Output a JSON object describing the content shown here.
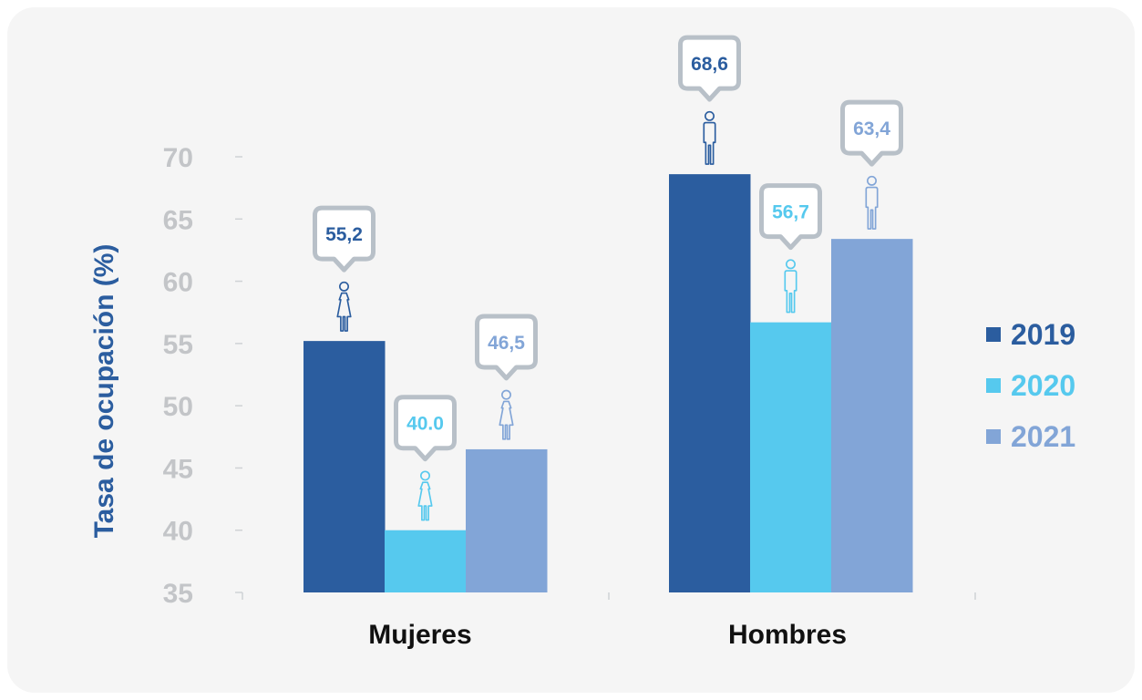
{
  "chart_data": {
    "type": "bar",
    "ylabel": "Tasa de ocupación (%)",
    "xlabel": "",
    "ylim": [
      35,
      70
    ],
    "yticks": [
      35,
      40,
      45,
      50,
      55,
      60,
      65,
      70
    ],
    "categories": [
      "Mujeres",
      "Hombres"
    ],
    "category_icons": [
      "woman-icon",
      "man-icon"
    ],
    "legend_position": "right",
    "grid": false,
    "series": [
      {
        "name": "2019",
        "color": "#2b5d9f",
        "values": [
          55.2,
          68.6
        ],
        "labels": [
          "55,2",
          "68,6"
        ]
      },
      {
        "name": "2020",
        "color": "#56c9ee",
        "values": [
          40.0,
          56.7
        ],
        "labels": [
          "40.0",
          "56,7"
        ]
      },
      {
        "name": "2021",
        "color": "#82a5d7",
        "values": [
          46.5,
          63.4
        ],
        "labels": [
          "46,5",
          "63,4"
        ]
      }
    ]
  }
}
